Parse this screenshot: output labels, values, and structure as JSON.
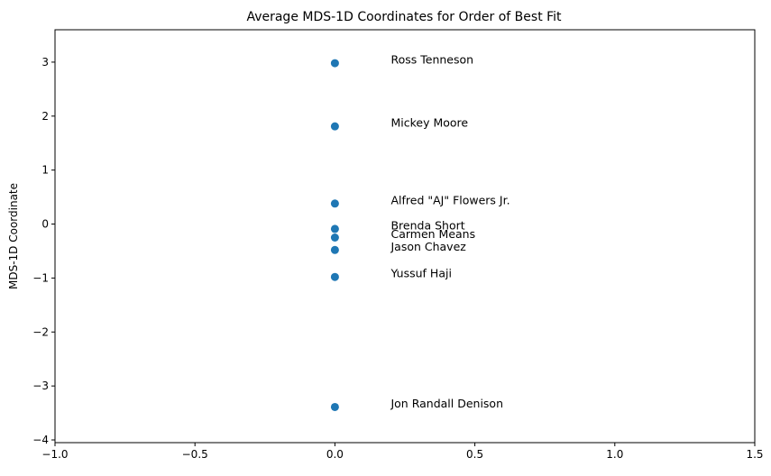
{
  "chart_data": {
    "type": "scatter",
    "title": "Average MDS-1D Coordinates for Order of Best Fit",
    "xlabel": "",
    "ylabel": "MDS-1D Coordinate",
    "xlim": [
      -1.0,
      1.5
    ],
    "ylim": [
      -4.05,
      3.6
    ],
    "x_ticks": [
      -1.0,
      -0.5,
      0.0,
      0.5,
      1.0,
      1.5
    ],
    "x_tick_labels": [
      "−1.0",
      "−0.5",
      "0.0",
      "0.5",
      "1.0",
      "1.5"
    ],
    "y_ticks": [
      -4,
      -3,
      -2,
      -1,
      0,
      1,
      2,
      3
    ],
    "y_tick_labels": [
      "−4",
      "−3",
      "−2",
      "−1",
      "0",
      "1",
      "2",
      "3"
    ],
    "grid": false,
    "point_color": "#1f77b4",
    "label_x_offset": 0.2,
    "points": [
      {
        "label": "Ross Tenneson",
        "x": 0.0,
        "y": 2.98
      },
      {
        "label": "Mickey Moore",
        "x": 0.0,
        "y": 1.81
      },
      {
        "label": "Alfred \"AJ\" Flowers Jr.",
        "x": 0.0,
        "y": 0.38
      },
      {
        "label": "Brenda Short",
        "x": 0.0,
        "y": -0.09
      },
      {
        "label": "Carmen Means",
        "x": 0.0,
        "y": -0.25
      },
      {
        "label": "Jason Chavez",
        "x": 0.0,
        "y": -0.48
      },
      {
        "label": "Yussuf Haji",
        "x": 0.0,
        "y": -0.98
      },
      {
        "label": "Jon Randall Denison",
        "x": 0.0,
        "y": -3.39
      }
    ]
  }
}
